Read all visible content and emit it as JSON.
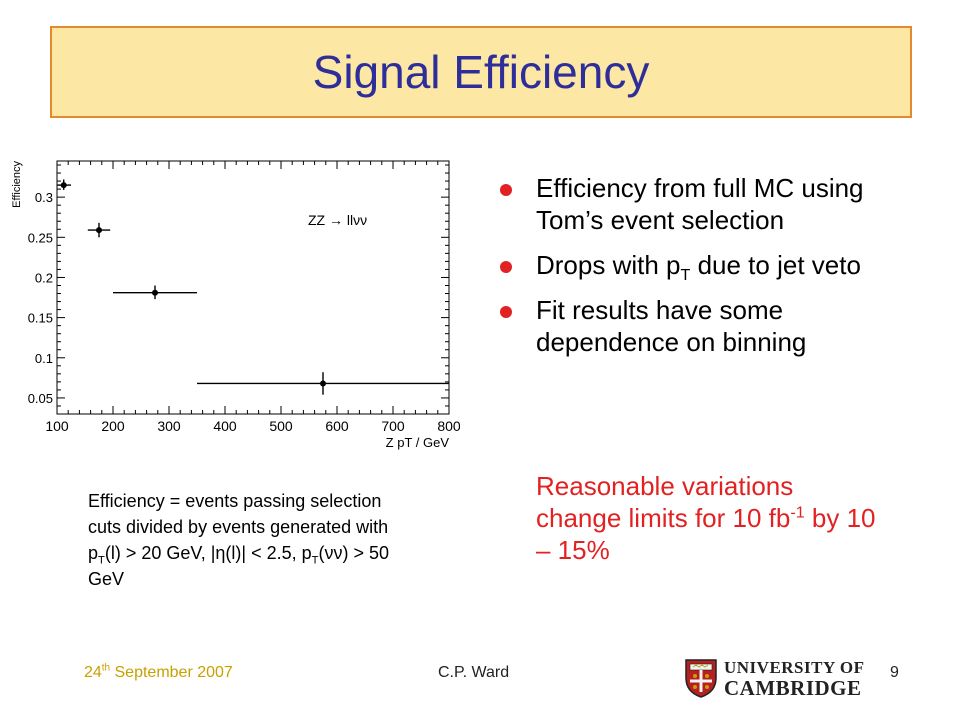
{
  "title": "Signal Efficiency",
  "bullets": [
    {
      "text": "Efficiency from full MC using Tom’s event selection"
    },
    {
      "pre": "Drops with p",
      "sub": "T",
      "post": " due to jet veto"
    },
    {
      "text": "Fit results have some dependence on binning"
    }
  ],
  "red_note": {
    "pre": "Reasonable variations change limits for 10 fb",
    "sup": "-1",
    "post": " by 10 – 15%"
  },
  "definition": {
    "part1": "Efficiency  = events passing selection cuts divided by events generated with p",
    "sub1": "T",
    "part2": "(l) > 20 GeV, |η(l)| < 2.5, p",
    "sub2": "T",
    "part3": "(νν) > 50 GeV"
  },
  "footer": {
    "date_day": "24",
    "date_suffix": "th",
    "date_rest": " September 2007",
    "author": "C.P. Ward",
    "page": "9"
  },
  "logo": {
    "line1": "UNIVERSITY OF",
    "line2": "CAMBRIDGE",
    "icon": "cambridge-crest-icon"
  },
  "colors": {
    "title_text": "#2e2e9b",
    "title_bg": "#fce7a4",
    "title_border": "#e58a2c",
    "bullet": "#e22222",
    "note": "#e22222",
    "date": "#c8a000"
  },
  "chart_data": {
    "type": "scatter",
    "title": "",
    "annotation": "ZZ → llνν",
    "xlabel": "Z pT / GeV",
    "ylabel": "Efficiency",
    "xlim": [
      100,
      800
    ],
    "ylim": [
      0.03,
      0.345
    ],
    "xticks": [
      100,
      200,
      300,
      400,
      500,
      600,
      700,
      800
    ],
    "yticks": [
      0.05,
      0.1,
      0.15,
      0.2,
      0.25,
      0.3
    ],
    "grid": false,
    "points": [
      {
        "x": 112,
        "y": 0.315,
        "xlo": 100,
        "xhi": 125,
        "ylo": 0.309,
        "yhi": 0.322
      },
      {
        "x": 175,
        "y": 0.259,
        "xlo": 155,
        "xhi": 195,
        "ylo": 0.25,
        "yhi": 0.268
      },
      {
        "x": 275,
        "y": 0.181,
        "xlo": 200,
        "xhi": 350,
        "ylo": 0.173,
        "yhi": 0.19
      },
      {
        "x": 575,
        "y": 0.068,
        "xlo": 350,
        "xhi": 800,
        "ylo": 0.054,
        "yhi": 0.082
      }
    ]
  }
}
